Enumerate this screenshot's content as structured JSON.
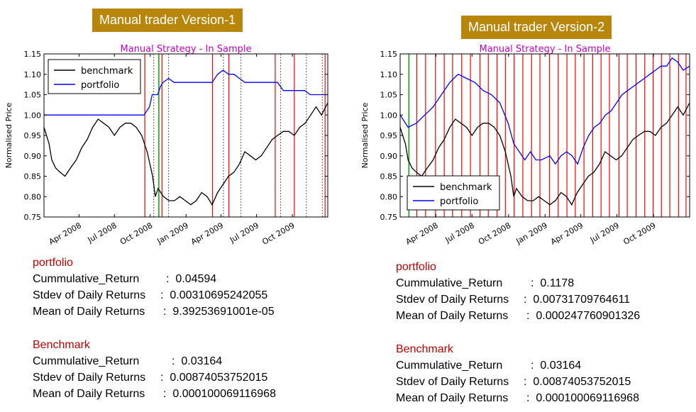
{
  "panels": [
    {
      "banner": "Manual trader Version-1",
      "portfolio_stats": {
        "heading": "portfolio",
        "rows": [
          {
            "label": "Cummulative_Return",
            "value": "0.04594"
          },
          {
            "label": "Stdev of Daily Returns",
            "value": "0.00310695242055"
          },
          {
            "label": "Mean of Daily Returns",
            "value": "9.39253691001e-05"
          }
        ]
      },
      "benchmark_stats": {
        "heading": "Benchmark",
        "rows": [
          {
            "label": "Cummulative_Return",
            "value": "0.03164"
          },
          {
            "label": "Stdev of Daily Returns",
            "value": "0.00874053752015"
          },
          {
            "label": "Mean of Daily Returns",
            "value": "0.000100069116968"
          }
        ]
      }
    },
    {
      "banner": "Manual trader Version-2",
      "portfolio_stats": {
        "heading": "portfolio",
        "rows": [
          {
            "label": "Cummulative_Return",
            "value": "0.1178"
          },
          {
            "label": "Stdev of Daily Returns",
            "value": "0.00731709764611"
          },
          {
            "label": "Mean of Daily Returns",
            "value": "0.000247760901326"
          }
        ]
      },
      "benchmark_stats": {
        "heading": "Benchmark",
        "rows": [
          {
            "label": "Cummulative_Return",
            "value": "0.03164"
          },
          {
            "label": "Stdev of Daily Returns",
            "value": "0.00874053752015"
          },
          {
            "label": "Mean of Daily Returns",
            "value": "0.000100069116968"
          }
        ]
      }
    }
  ],
  "chart_data": [
    {
      "type": "line",
      "title": "Manual Strategy - In Sample",
      "ylabel": "Normalised Price",
      "xlabel": "",
      "ylim": [
        0.75,
        1.15
      ],
      "xlim": [
        "2008-01-02",
        "2009-12-31"
      ],
      "yticks": [
        "0.75",
        "0.80",
        "0.85",
        "0.90",
        "0.95",
        "1.00",
        "1.05",
        "1.10",
        "1.15"
      ],
      "xticks": [
        {
          "date": "2008-04-01",
          "label": "Apr 2008"
        },
        {
          "date": "2008-07-01",
          "label": "Jul 2008"
        },
        {
          "date": "2008-10-01",
          "label": "Oct 2008"
        },
        {
          "date": "2009-01-01",
          "label": "Jan 2009"
        },
        {
          "date": "2009-04-01",
          "label": "Apr 2009"
        },
        {
          "date": "2009-07-01",
          "label": "Jul 2009"
        },
        {
          "date": "2009-10-01",
          "label": "Oct 2009"
        }
      ],
      "legend": {
        "placement": "top-left"
      },
      "colors": {
        "benchmark": "#000000",
        "portfolio": "#0000ff",
        "title": "#c000c0",
        "short": "#ff0000",
        "long": "#00aa00",
        "exit": "#555555"
      },
      "series": [
        {
          "name": "benchmark",
          "color": "#000000",
          "points": [
            [
              "2008-01-02",
              0.97
            ],
            [
              "2008-01-15",
              0.93
            ],
            [
              "2008-01-22",
              0.89
            ],
            [
              "2008-02-01",
              0.87
            ],
            [
              "2008-02-12",
              0.86
            ],
            [
              "2008-02-25",
              0.85
            ],
            [
              "2008-03-10",
              0.87
            ],
            [
              "2008-03-25",
              0.89
            ],
            [
              "2008-04-08",
              0.92
            ],
            [
              "2008-04-22",
              0.94
            ],
            [
              "2008-05-06",
              0.97
            ],
            [
              "2008-05-20",
              0.99
            ],
            [
              "2008-06-03",
              0.98
            ],
            [
              "2008-06-17",
              0.97
            ],
            [
              "2008-07-01",
              0.95
            ],
            [
              "2008-07-15",
              0.97
            ],
            [
              "2008-07-29",
              0.98
            ],
            [
              "2008-08-12",
              0.98
            ],
            [
              "2008-08-26",
              0.97
            ],
            [
              "2008-09-09",
              0.95
            ],
            [
              "2008-09-23",
              0.91
            ],
            [
              "2008-10-07",
              0.85
            ],
            [
              "2008-10-14",
              0.8
            ],
            [
              "2008-10-21",
              0.82
            ],
            [
              "2008-11-04",
              0.8
            ],
            [
              "2008-11-18",
              0.79
            ],
            [
              "2008-12-02",
              0.79
            ],
            [
              "2008-12-16",
              0.8
            ],
            [
              "2008-12-30",
              0.79
            ],
            [
              "2009-01-13",
              0.78
            ],
            [
              "2009-01-27",
              0.79
            ],
            [
              "2009-02-10",
              0.81
            ],
            [
              "2009-02-24",
              0.8
            ],
            [
              "2009-03-09",
              0.78
            ],
            [
              "2009-03-23",
              0.81
            ],
            [
              "2009-04-06",
              0.83
            ],
            [
              "2009-04-20",
              0.85
            ],
            [
              "2009-05-04",
              0.86
            ],
            [
              "2009-05-18",
              0.88
            ],
            [
              "2009-06-01",
              0.91
            ],
            [
              "2009-06-15",
              0.9
            ],
            [
              "2009-06-29",
              0.89
            ],
            [
              "2009-07-13",
              0.9
            ],
            [
              "2009-07-27",
              0.92
            ],
            [
              "2009-08-10",
              0.94
            ],
            [
              "2009-08-24",
              0.95
            ],
            [
              "2009-09-08",
              0.96
            ],
            [
              "2009-09-22",
              0.96
            ],
            [
              "2009-10-06",
              0.95
            ],
            [
              "2009-10-20",
              0.97
            ],
            [
              "2009-11-03",
              0.98
            ],
            [
              "2009-11-17",
              1.0
            ],
            [
              "2009-12-01",
              1.02
            ],
            [
              "2009-12-15",
              1.0
            ],
            [
              "2009-12-31",
              1.03
            ]
          ]
        },
        {
          "name": "portfolio",
          "color": "#0000ff",
          "points": [
            [
              "2008-01-02",
              1.0
            ],
            [
              "2008-09-15",
              1.0
            ],
            [
              "2008-09-29",
              1.02
            ],
            [
              "2008-10-06",
              1.05
            ],
            [
              "2008-10-20",
              1.05
            ],
            [
              "2008-10-27",
              1.07
            ],
            [
              "2008-11-03",
              1.08
            ],
            [
              "2008-11-17",
              1.09
            ],
            [
              "2008-12-01",
              1.08
            ],
            [
              "2008-12-15",
              1.08
            ],
            [
              "2009-03-09",
              1.08
            ],
            [
              "2009-03-23",
              1.1
            ],
            [
              "2009-04-06",
              1.11
            ],
            [
              "2009-04-20",
              1.1
            ],
            [
              "2009-05-04",
              1.1
            ],
            [
              "2009-05-18",
              1.09
            ],
            [
              "2009-06-01",
              1.08
            ],
            [
              "2009-06-15",
              1.08
            ],
            [
              "2009-08-24",
              1.08
            ],
            [
              "2009-09-08",
              1.06
            ],
            [
              "2009-09-22",
              1.06
            ],
            [
              "2009-10-06",
              1.06
            ],
            [
              "2009-11-02",
              1.06
            ],
            [
              "2009-11-16",
              1.05
            ],
            [
              "2009-12-31",
              1.05
            ]
          ]
        }
      ],
      "vlines": {
        "short": [
          "2008-09-17",
          "2008-10-31",
          "2009-03-10",
          "2009-04-21",
          "2009-08-18",
          "2009-10-06",
          "2009-12-24"
        ],
        "long": [
          "2008-10-23"
        ],
        "exit": [
          "2008-10-10",
          "2008-11-17",
          "2009-04-07",
          "2009-05-22",
          "2009-09-01",
          "2009-11-06",
          "2009-12-17"
        ]
      }
    },
    {
      "type": "line",
      "title": "Manual Strategy - In Sample",
      "ylabel": "Normalised Price",
      "xlabel": "",
      "ylim": [
        0.75,
        1.15
      ],
      "xlim": [
        "2008-01-02",
        "2009-12-31"
      ],
      "yticks": [
        "0.75",
        "0.80",
        "0.85",
        "0.90",
        "0.95",
        "1.00",
        "1.05",
        "1.10",
        "1.15"
      ],
      "xticks": [
        {
          "date": "2008-04-01",
          "label": "Apr 2008"
        },
        {
          "date": "2008-07-01",
          "label": "Jul 2008"
        },
        {
          "date": "2008-10-01",
          "label": "Oct 2008"
        },
        {
          "date": "2009-01-01",
          "label": "Jan 2009"
        },
        {
          "date": "2009-04-01",
          "label": "Apr 2009"
        },
        {
          "date": "2009-07-01",
          "label": "Jul 2009"
        },
        {
          "date": "2009-10-01",
          "label": "Oct 2009"
        }
      ],
      "legend": {
        "placement": "bottom-left"
      },
      "colors": {
        "benchmark": "#000000",
        "portfolio": "#0000ff",
        "title": "#c000c0",
        "short": "#ff0000",
        "long": "#00aa00"
      },
      "series": [
        {
          "name": "benchmark",
          "color": "#000000",
          "points": [
            [
              "2008-01-02",
              0.97
            ],
            [
              "2008-01-15",
              0.93
            ],
            [
              "2008-01-22",
              0.89
            ],
            [
              "2008-02-01",
              0.87
            ],
            [
              "2008-02-12",
              0.86
            ],
            [
              "2008-02-25",
              0.85
            ],
            [
              "2008-03-10",
              0.87
            ],
            [
              "2008-03-25",
              0.89
            ],
            [
              "2008-04-08",
              0.92
            ],
            [
              "2008-04-22",
              0.94
            ],
            [
              "2008-05-06",
              0.97
            ],
            [
              "2008-05-20",
              0.99
            ],
            [
              "2008-06-03",
              0.98
            ],
            [
              "2008-06-17",
              0.97
            ],
            [
              "2008-07-01",
              0.95
            ],
            [
              "2008-07-15",
              0.97
            ],
            [
              "2008-07-29",
              0.98
            ],
            [
              "2008-08-12",
              0.98
            ],
            [
              "2008-08-26",
              0.97
            ],
            [
              "2008-09-09",
              0.95
            ],
            [
              "2008-09-23",
              0.91
            ],
            [
              "2008-10-07",
              0.85
            ],
            [
              "2008-10-14",
              0.8
            ],
            [
              "2008-10-21",
              0.82
            ],
            [
              "2008-11-04",
              0.8
            ],
            [
              "2008-11-18",
              0.79
            ],
            [
              "2008-12-02",
              0.79
            ],
            [
              "2008-12-16",
              0.8
            ],
            [
              "2008-12-30",
              0.79
            ],
            [
              "2009-01-13",
              0.78
            ],
            [
              "2009-01-27",
              0.79
            ],
            [
              "2009-02-10",
              0.81
            ],
            [
              "2009-02-24",
              0.8
            ],
            [
              "2009-03-09",
              0.78
            ],
            [
              "2009-03-23",
              0.81
            ],
            [
              "2009-04-06",
              0.83
            ],
            [
              "2009-04-20",
              0.85
            ],
            [
              "2009-05-04",
              0.86
            ],
            [
              "2009-05-18",
              0.88
            ],
            [
              "2009-06-01",
              0.91
            ],
            [
              "2009-06-15",
              0.9
            ],
            [
              "2009-06-29",
              0.89
            ],
            [
              "2009-07-13",
              0.9
            ],
            [
              "2009-07-27",
              0.92
            ],
            [
              "2009-08-10",
              0.94
            ],
            [
              "2009-08-24",
              0.95
            ],
            [
              "2009-09-08",
              0.96
            ],
            [
              "2009-09-22",
              0.96
            ],
            [
              "2009-10-06",
              0.95
            ],
            [
              "2009-10-20",
              0.97
            ],
            [
              "2009-11-03",
              0.98
            ],
            [
              "2009-11-17",
              1.0
            ],
            [
              "2009-12-01",
              1.02
            ],
            [
              "2009-12-15",
              1.0
            ],
            [
              "2009-12-31",
              1.03
            ]
          ]
        },
        {
          "name": "portfolio",
          "color": "#0000ff",
          "points": [
            [
              "2008-01-02",
              1.0
            ],
            [
              "2008-01-22",
              0.97
            ],
            [
              "2008-02-12",
              0.98
            ],
            [
              "2008-03-04",
              1.0
            ],
            [
              "2008-03-25",
              1.02
            ],
            [
              "2008-04-15",
              1.05
            ],
            [
              "2008-05-06",
              1.08
            ],
            [
              "2008-05-27",
              1.1
            ],
            [
              "2008-06-17",
              1.09
            ],
            [
              "2008-07-08",
              1.08
            ],
            [
              "2008-07-29",
              1.06
            ],
            [
              "2008-08-19",
              1.05
            ],
            [
              "2008-09-09",
              1.03
            ],
            [
              "2008-09-30",
              0.98
            ],
            [
              "2008-10-14",
              0.93
            ],
            [
              "2008-10-28",
              0.91
            ],
            [
              "2008-11-11",
              0.89
            ],
            [
              "2008-11-25",
              0.91
            ],
            [
              "2008-12-09",
              0.89
            ],
            [
              "2008-12-23",
              0.89
            ],
            [
              "2009-01-13",
              0.9
            ],
            [
              "2009-01-27",
              0.88
            ],
            [
              "2009-02-10",
              0.9
            ],
            [
              "2009-02-24",
              0.91
            ],
            [
              "2009-03-10",
              0.9
            ],
            [
              "2009-03-24",
              0.88
            ],
            [
              "2009-04-07",
              0.92
            ],
            [
              "2009-04-21",
              0.95
            ],
            [
              "2009-05-05",
              0.97
            ],
            [
              "2009-05-19",
              0.98
            ],
            [
              "2009-06-02",
              1.0
            ],
            [
              "2009-06-16",
              1.01
            ],
            [
              "2009-06-30",
              1.03
            ],
            [
              "2009-07-14",
              1.05
            ],
            [
              "2009-07-28",
              1.06
            ],
            [
              "2009-08-11",
              1.07
            ],
            [
              "2009-08-25",
              1.08
            ],
            [
              "2009-09-08",
              1.09
            ],
            [
              "2009-09-22",
              1.1
            ],
            [
              "2009-10-06",
              1.11
            ],
            [
              "2009-10-20",
              1.12
            ],
            [
              "2009-11-03",
              1.12
            ],
            [
              "2009-11-17",
              1.14
            ],
            [
              "2009-12-01",
              1.13
            ],
            [
              "2009-12-15",
              1.11
            ],
            [
              "2009-12-31",
              1.12
            ]
          ]
        }
      ],
      "vlines": {
        "short": [
          "2008-02-13",
          "2008-03-06",
          "2008-03-31",
          "2008-04-22",
          "2008-05-13",
          "2008-06-05",
          "2008-06-27",
          "2008-07-21",
          "2008-08-11",
          "2008-09-02",
          "2008-09-23",
          "2008-10-15",
          "2008-11-06",
          "2008-11-28",
          "2008-12-19",
          "2009-01-12",
          "2009-02-03",
          "2009-02-25",
          "2009-03-18",
          "2009-04-09",
          "2009-05-01",
          "2009-05-22",
          "2009-06-12",
          "2009-07-06",
          "2009-07-27",
          "2009-08-18",
          "2009-09-09",
          "2009-09-30",
          "2009-10-21",
          "2009-11-11",
          "2009-12-03",
          "2009-12-22"
        ],
        "long": [
          "2008-01-24"
        ],
        "exit": []
      }
    }
  ]
}
